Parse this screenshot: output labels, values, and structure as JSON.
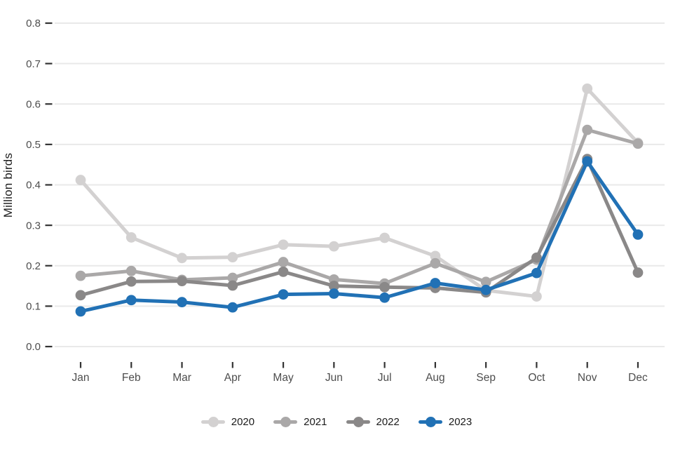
{
  "chart_data": {
    "type": "line",
    "title": "",
    "xlabel": "",
    "ylabel": "Million birds",
    "categories": [
      "Jan",
      "Feb",
      "Mar",
      "Apr",
      "May",
      "Jun",
      "Jul",
      "Aug",
      "Sep",
      "Oct",
      "Nov",
      "Dec"
    ],
    "ylim": [
      0.0,
      0.8
    ],
    "yticks": [
      0.0,
      0.1,
      0.2,
      0.3,
      0.4,
      0.5,
      0.6,
      0.7,
      0.8
    ],
    "ytick_labels": [
      "0.0",
      "0.1",
      "0.2",
      "0.3",
      "0.4",
      "0.5",
      "0.6",
      "0.7",
      "0.8"
    ],
    "grid": "horizontal",
    "legend_position": "bottom",
    "series": [
      {
        "name": "2020",
        "color": "#d3d1d1",
        "values": [
          0.412,
          0.27,
          0.219,
          0.221,
          0.252,
          0.248,
          0.269,
          0.224,
          0.139,
          0.124,
          0.638,
          0.504
        ]
      },
      {
        "name": "2021",
        "color": "#aaa8a8",
        "values": [
          0.175,
          0.187,
          0.165,
          0.17,
          0.209,
          0.166,
          0.156,
          0.206,
          0.16,
          0.215,
          0.536,
          0.502
        ]
      },
      {
        "name": "2022",
        "color": "#8a8888",
        "values": [
          0.127,
          0.161,
          0.162,
          0.151,
          0.185,
          0.15,
          0.147,
          0.145,
          0.134,
          0.22,
          0.464,
          0.183
        ]
      },
      {
        "name": "2023",
        "color": "#2171b5",
        "values": [
          0.087,
          0.115,
          0.11,
          0.097,
          0.129,
          0.131,
          0.121,
          0.157,
          0.14,
          0.182,
          0.458,
          0.277
        ]
      }
    ],
    "style": {
      "gridline_color": "#e9e9e9",
      "tick_mark_color": "#333333",
      "tick_label_color": "#4d4d4d",
      "axis_title_color": "#1f1f1f",
      "background_color": "#ffffff"
    }
  }
}
